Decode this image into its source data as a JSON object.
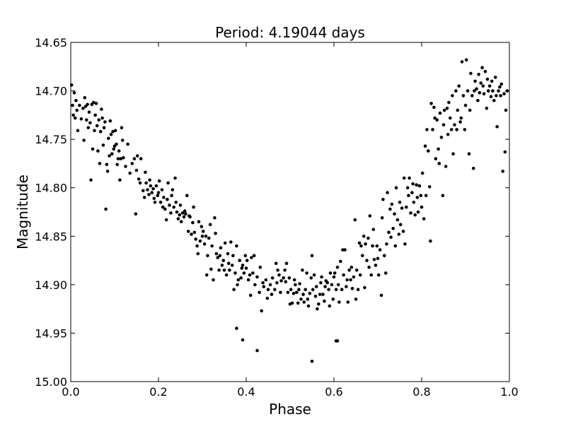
{
  "chart_data": {
    "type": "scatter",
    "title": "Period: 4.19044 days",
    "xlabel": "Phase",
    "ylabel": "Magnitude",
    "xlim": [
      0.0,
      1.0
    ],
    "ylim": [
      14.65,
      15.0
    ],
    "y_inverted": true,
    "grid": false,
    "marker_color": "#000000",
    "x_ticks": [
      "0.0",
      "0.2",
      "0.4",
      "0.6",
      "0.8",
      "1.0"
    ],
    "y_ticks": [
      "14.65",
      "14.70",
      "14.75",
      "14.80",
      "14.85",
      "14.90",
      "14.95",
      "15.00"
    ],
    "points": [
      [
        0.002,
        14.694
      ],
      [
        0.004,
        14.715
      ],
      [
        0.006,
        14.725
      ],
      [
        0.008,
        14.702
      ],
      [
        0.01,
        14.728
      ],
      [
        0.012,
        14.71
      ],
      [
        0.014,
        14.72
      ],
      [
        0.016,
        14.741
      ],
      [
        0.02,
        14.715
      ],
      [
        0.024,
        14.729
      ],
      [
        0.028,
        14.718
      ],
      [
        0.03,
        14.751
      ],
      [
        0.032,
        14.707
      ],
      [
        0.034,
        14.716
      ],
      [
        0.036,
        14.73
      ],
      [
        0.038,
        14.714
      ],
      [
        0.04,
        14.738
      ],
      [
        0.042,
        14.722
      ],
      [
        0.044,
        14.733
      ],
      [
        0.046,
        14.792
      ],
      [
        0.048,
        14.714
      ],
      [
        0.05,
        14.76
      ],
      [
        0.052,
        14.712
      ],
      [
        0.054,
        14.741
      ],
      [
        0.056,
        14.725
      ],
      [
        0.058,
        14.713
      ],
      [
        0.06,
        14.736
      ],
      [
        0.062,
        14.762
      ],
      [
        0.064,
        14.73
      ],
      [
        0.066,
        14.775
      ],
      [
        0.068,
        14.742
      ],
      [
        0.07,
        14.719
      ],
      [
        0.072,
        14.728
      ],
      [
        0.074,
        14.756
      ],
      [
        0.076,
        14.738
      ],
      [
        0.078,
        14.732
      ],
      [
        0.08,
        14.822
      ],
      [
        0.082,
        14.776
      ],
      [
        0.084,
        14.783
      ],
      [
        0.086,
        14.749
      ],
      [
        0.088,
        14.767
      ],
      [
        0.09,
        14.731
      ],
      [
        0.092,
        14.745
      ],
      [
        0.094,
        14.765
      ],
      [
        0.096,
        14.742
      ],
      [
        0.098,
        14.76
      ],
      [
        0.1,
        14.757
      ],
      [
        0.102,
        14.741
      ],
      [
        0.104,
        14.755
      ],
      [
        0.106,
        14.776
      ],
      [
        0.108,
        14.77
      ],
      [
        0.11,
        14.762
      ],
      [
        0.112,
        14.792
      ],
      [
        0.114,
        14.77
      ],
      [
        0.116,
        14.738
      ],
      [
        0.118,
        14.751
      ],
      [
        0.12,
        14.769
      ],
      [
        0.125,
        14.778
      ],
      [
        0.13,
        14.755
      ],
      [
        0.135,
        14.785
      ],
      [
        0.14,
        14.775
      ],
      [
        0.145,
        14.77
      ],
      [
        0.148,
        14.827
      ],
      [
        0.15,
        14.782
      ],
      [
        0.152,
        14.767
      ],
      [
        0.155,
        14.791
      ],
      [
        0.158,
        14.795
      ],
      [
        0.16,
        14.77
      ],
      [
        0.165,
        14.803
      ],
      [
        0.168,
        14.81
      ],
      [
        0.17,
        14.784
      ],
      [
        0.172,
        14.795
      ],
      [
        0.175,
        14.802
      ],
      [
        0.178,
        14.807
      ],
      [
        0.18,
        14.792
      ],
      [
        0.182,
        14.798
      ],
      [
        0.185,
        14.805
      ],
      [
        0.188,
        14.801
      ],
      [
        0.19,
        14.811
      ],
      [
        0.192,
        14.815
      ],
      [
        0.195,
        14.798
      ],
      [
        0.198,
        14.808
      ],
      [
        0.2,
        14.805
      ],
      [
        0.202,
        14.793
      ],
      [
        0.205,
        14.815
      ],
      [
        0.208,
        14.802
      ],
      [
        0.21,
        14.82
      ],
      [
        0.212,
        14.81
      ],
      [
        0.215,
        14.822
      ],
      [
        0.218,
        14.833
      ],
      [
        0.22,
        14.812
      ],
      [
        0.222,
        14.795
      ],
      [
        0.225,
        14.818
      ],
      [
        0.228,
        14.826
      ],
      [
        0.23,
        14.808
      ],
      [
        0.232,
        14.802
      ],
      [
        0.235,
        14.82
      ],
      [
        0.238,
        14.79
      ],
      [
        0.24,
        14.815
      ],
      [
        0.242,
        14.825
      ],
      [
        0.245,
        14.832
      ],
      [
        0.248,
        14.828
      ],
      [
        0.25,
        14.818
      ],
      [
        0.252,
        14.835
      ],
      [
        0.255,
        14.826
      ],
      [
        0.258,
        14.83
      ],
      [
        0.26,
        14.824
      ],
      [
        0.262,
        14.827
      ],
      [
        0.265,
        14.808
      ],
      [
        0.268,
        14.845
      ],
      [
        0.27,
        14.829
      ],
      [
        0.272,
        14.83
      ],
      [
        0.275,
        14.848
      ],
      [
        0.278,
        14.836
      ],
      [
        0.28,
        14.82
      ],
      [
        0.282,
        14.846
      ],
      [
        0.285,
        14.853
      ],
      [
        0.288,
        14.86
      ],
      [
        0.29,
        14.868
      ],
      [
        0.292,
        14.835
      ],
      [
        0.295,
        14.855
      ],
      [
        0.298,
        14.84
      ],
      [
        0.3,
        14.85
      ],
      [
        0.302,
        14.845
      ],
      [
        0.305,
        14.858
      ],
      [
        0.308,
        14.85
      ],
      [
        0.31,
        14.89
      ],
      [
        0.312,
        14.87
      ],
      [
        0.315,
        14.852
      ],
      [
        0.318,
        14.838
      ],
      [
        0.32,
        14.884
      ],
      [
        0.322,
        14.86
      ],
      [
        0.325,
        14.895
      ],
      [
        0.328,
        14.831
      ],
      [
        0.33,
        14.847
      ],
      [
        0.332,
        14.868
      ],
      [
        0.335,
        14.872
      ],
      [
        0.338,
        14.885
      ],
      [
        0.34,
        14.87
      ],
      [
        0.342,
        14.862
      ],
      [
        0.345,
        14.88
      ],
      [
        0.348,
        14.875
      ],
      [
        0.35,
        14.885
      ],
      [
        0.352,
        14.857
      ],
      [
        0.355,
        14.89
      ],
      [
        0.358,
        14.868
      ],
      [
        0.36,
        14.878
      ],
      [
        0.362,
        14.885
      ],
      [
        0.365,
        14.856
      ],
      [
        0.368,
        14.88
      ],
      [
        0.37,
        14.87
      ],
      [
        0.372,
        14.905
      ],
      [
        0.375,
        14.888
      ],
      [
        0.378,
        14.86
      ],
      [
        0.38,
        14.9
      ],
      [
        0.382,
        14.895
      ],
      [
        0.385,
        14.875
      ],
      [
        0.388,
        14.893
      ],
      [
        0.39,
        14.883
      ],
      [
        0.392,
        14.88
      ],
      [
        0.395,
        14.888
      ],
      [
        0.398,
        14.87
      ],
      [
        0.4,
        14.883
      ],
      [
        0.402,
        14.875
      ],
      [
        0.405,
        14.895
      ],
      [
        0.408,
        14.89
      ],
      [
        0.41,
        14.911
      ],
      [
        0.412,
        14.872
      ],
      [
        0.415,
        14.888
      ],
      [
        0.418,
        14.87
      ],
      [
        0.42,
        14.9
      ],
      [
        0.425,
        14.892
      ],
      [
        0.43,
        14.908
      ],
      [
        0.432,
        14.882
      ],
      [
        0.435,
        14.927
      ],
      [
        0.438,
        14.898
      ],
      [
        0.44,
        14.902
      ],
      [
        0.445,
        14.895
      ],
      [
        0.448,
        14.914
      ],
      [
        0.45,
        14.905
      ],
      [
        0.455,
        14.9
      ],
      [
        0.458,
        14.91
      ],
      [
        0.46,
        14.893
      ],
      [
        0.465,
        14.905
      ],
      [
        0.468,
        14.878
      ],
      [
        0.47,
        14.898
      ],
      [
        0.472,
        14.885
      ],
      [
        0.475,
        14.89
      ],
      [
        0.478,
        14.908
      ],
      [
        0.48,
        14.896
      ],
      [
        0.485,
        14.893
      ],
      [
        0.488,
        14.885
      ],
      [
        0.49,
        14.897
      ],
      [
        0.492,
        14.878
      ],
      [
        0.495,
        14.908
      ],
      [
        0.498,
        14.893
      ],
      [
        0.5,
        14.92
      ],
      [
        0.502,
        14.905
      ],
      [
        0.505,
        14.919
      ],
      [
        0.508,
        14.909
      ],
      [
        0.51,
        14.895
      ],
      [
        0.512,
        14.9
      ],
      [
        0.515,
        14.908
      ],
      [
        0.518,
        14.919
      ],
      [
        0.52,
        14.905
      ],
      [
        0.522,
        14.899
      ],
      [
        0.525,
        14.915
      ],
      [
        0.528,
        14.885
      ],
      [
        0.53,
        14.91
      ],
      [
        0.532,
        14.918
      ],
      [
        0.535,
        14.905
      ],
      [
        0.538,
        14.888
      ],
      [
        0.54,
        14.915
      ],
      [
        0.542,
        14.922
      ],
      [
        0.545,
        14.909
      ],
      [
        0.548,
        14.893
      ],
      [
        0.55,
        14.87
      ],
      [
        0.552,
        14.905
      ],
      [
        0.555,
        14.89
      ],
      [
        0.558,
        14.912
      ],
      [
        0.56,
        14.902
      ],
      [
        0.562,
        14.925
      ],
      [
        0.565,
        14.92
      ],
      [
        0.568,
        14.91
      ],
      [
        0.57,
        14.898
      ],
      [
        0.572,
        14.892
      ],
      [
        0.575,
        14.91
      ],
      [
        0.578,
        14.917
      ],
      [
        0.58,
        14.902
      ],
      [
        0.582,
        14.896
      ],
      [
        0.585,
        14.898
      ],
      [
        0.588,
        14.905
      ],
      [
        0.59,
        14.922
      ],
      [
        0.592,
        14.888
      ],
      [
        0.595,
        14.9
      ],
      [
        0.598,
        14.915
      ],
      [
        0.6,
        14.892
      ],
      [
        0.602,
        14.888
      ],
      [
        0.605,
        14.905
      ],
      [
        0.608,
        14.882
      ],
      [
        0.61,
        14.9
      ],
      [
        0.612,
        14.918
      ],
      [
        0.615,
        14.876
      ],
      [
        0.618,
        14.905
      ],
      [
        0.62,
        14.864
      ],
      [
        0.622,
        14.89
      ],
      [
        0.625,
        14.864
      ],
      [
        0.628,
        14.902
      ],
      [
        0.63,
        14.895
      ],
      [
        0.632,
        14.918
      ],
      [
        0.635,
        14.885
      ],
      [
        0.638,
        14.895
      ],
      [
        0.64,
        14.882
      ],
      [
        0.642,
        14.904
      ],
      [
        0.645,
        14.892
      ],
      [
        0.648,
        14.833
      ],
      [
        0.65,
        14.915
      ],
      [
        0.652,
        14.885
      ],
      [
        0.655,
        14.905
      ],
      [
        0.658,
        14.857
      ],
      [
        0.66,
        14.89
      ],
      [
        0.662,
        14.86
      ],
      [
        0.665,
        14.87
      ],
      [
        0.668,
        14.85
      ],
      [
        0.67,
        14.903
      ],
      [
        0.672,
        14.858
      ],
      [
        0.675,
        14.875
      ],
      [
        0.678,
        14.852
      ],
      [
        0.68,
        14.882
      ],
      [
        0.682,
        14.829
      ],
      [
        0.685,
        14.89
      ],
      [
        0.688,
        14.86
      ],
      [
        0.69,
        14.843
      ],
      [
        0.692,
        14.874
      ],
      [
        0.695,
        14.88
      ],
      [
        0.698,
        14.86
      ],
      [
        0.7,
        14.873
      ],
      [
        0.702,
        14.89
      ],
      [
        0.705,
        14.864
      ],
      [
        0.708,
        14.911
      ],
      [
        0.71,
        14.831
      ],
      [
        0.712,
        14.812
      ],
      [
        0.715,
        14.87
      ],
      [
        0.718,
        14.888
      ],
      [
        0.72,
        14.858
      ],
      [
        0.722,
        14.805
      ],
      [
        0.725,
        14.846
      ],
      [
        0.728,
        14.822
      ],
      [
        0.73,
        14.851
      ],
      [
        0.732,
        14.817
      ],
      [
        0.735,
        14.842
      ],
      [
        0.738,
        14.827
      ],
      [
        0.74,
        14.86
      ],
      [
        0.742,
        14.8
      ],
      [
        0.745,
        14.833
      ],
      [
        0.748,
        14.848
      ],
      [
        0.75,
        14.815
      ],
      [
        0.752,
        14.838
      ],
      [
        0.755,
        14.821
      ],
      [
        0.758,
        14.845
      ],
      [
        0.76,
        14.79
      ],
      [
        0.762,
        14.858
      ],
      [
        0.765,
        14.82
      ],
      [
        0.768,
        14.8
      ],
      [
        0.77,
        14.808
      ],
      [
        0.772,
        14.79
      ],
      [
        0.775,
        14.826
      ],
      [
        0.778,
        14.805
      ],
      [
        0.78,
        14.796
      ],
      [
        0.782,
        14.815
      ],
      [
        0.785,
        14.828
      ],
      [
        0.788,
        14.797
      ],
      [
        0.79,
        14.81
      ],
      [
        0.792,
        14.825
      ],
      [
        0.795,
        14.798
      ],
      [
        0.798,
        14.808
      ],
      [
        0.8,
        14.82
      ],
      [
        0.802,
        14.785
      ],
      [
        0.805,
        14.832
      ],
      [
        0.808,
        14.757
      ],
      [
        0.81,
        14.808
      ],
      [
        0.812,
        14.74
      ],
      [
        0.815,
        14.762
      ],
      [
        0.818,
        14.799
      ],
      [
        0.82,
        14.855
      ],
      [
        0.822,
        14.713
      ],
      [
        0.825,
        14.74
      ],
      [
        0.828,
        14.717
      ],
      [
        0.83,
        14.728
      ],
      [
        0.832,
        14.77
      ],
      [
        0.835,
        14.73
      ],
      [
        0.838,
        14.76
      ],
      [
        0.84,
        14.775
      ],
      [
        0.842,
        14.723
      ],
      [
        0.845,
        14.748
      ],
      [
        0.848,
        14.808
      ],
      [
        0.85,
        14.735
      ],
      [
        0.852,
        14.72
      ],
      [
        0.855,
        14.778
      ],
      [
        0.858,
        14.718
      ],
      [
        0.86,
        14.745
      ],
      [
        0.862,
        14.712
      ],
      [
        0.865,
        14.728
      ],
      [
        0.868,
        14.74
      ],
      [
        0.87,
        14.705
      ],
      [
        0.872,
        14.765
      ],
      [
        0.875,
        14.735
      ],
      [
        0.878,
        14.7
      ],
      [
        0.88,
        14.74
      ],
      [
        0.882,
        14.72
      ],
      [
        0.885,
        14.695
      ],
      [
        0.888,
        14.732
      ],
      [
        0.89,
        14.728
      ],
      [
        0.892,
        14.67
      ],
      [
        0.895,
        14.705
      ],
      [
        0.898,
        14.74
      ],
      [
        0.9,
        14.715
      ],
      [
        0.902,
        14.668
      ],
      [
        0.905,
        14.7
      ],
      [
        0.908,
        14.765
      ],
      [
        0.91,
        14.72
      ],
      [
        0.912,
        14.682
      ],
      [
        0.915,
        14.705
      ],
      [
        0.918,
        14.78
      ],
      [
        0.92,
        14.7
      ],
      [
        0.922,
        14.69
      ],
      [
        0.925,
        14.698
      ],
      [
        0.928,
        14.71
      ],
      [
        0.93,
        14.683
      ],
      [
        0.932,
        14.702
      ],
      [
        0.935,
        14.692
      ],
      [
        0.938,
        14.676
      ],
      [
        0.94,
        14.695
      ],
      [
        0.942,
        14.703
      ],
      [
        0.945,
        14.68
      ],
      [
        0.948,
        14.718
      ],
      [
        0.95,
        14.688
      ],
      [
        0.952,
        14.7
      ],
      [
        0.955,
        14.695
      ],
      [
        0.958,
        14.706
      ],
      [
        0.96,
        14.69
      ],
      [
        0.962,
        14.7
      ],
      [
        0.965,
        14.71
      ],
      [
        0.968,
        14.686
      ],
      [
        0.97,
        14.705
      ],
      [
        0.972,
        14.737
      ],
      [
        0.975,
        14.7
      ],
      [
        0.978,
        14.696
      ],
      [
        0.98,
        14.705
      ],
      [
        0.982,
        14.693
      ],
      [
        0.985,
        14.783
      ],
      [
        0.988,
        14.703
      ],
      [
        0.99,
        14.763
      ],
      [
        0.992,
        14.72
      ],
      [
        0.995,
        14.7
      ],
      [
        0.378,
        14.945
      ],
      [
        0.392,
        14.957
      ],
      [
        0.425,
        14.968
      ],
      [
        0.55,
        14.979
      ],
      [
        0.605,
        14.958
      ],
      [
        0.608,
        14.958
      ]
    ]
  }
}
